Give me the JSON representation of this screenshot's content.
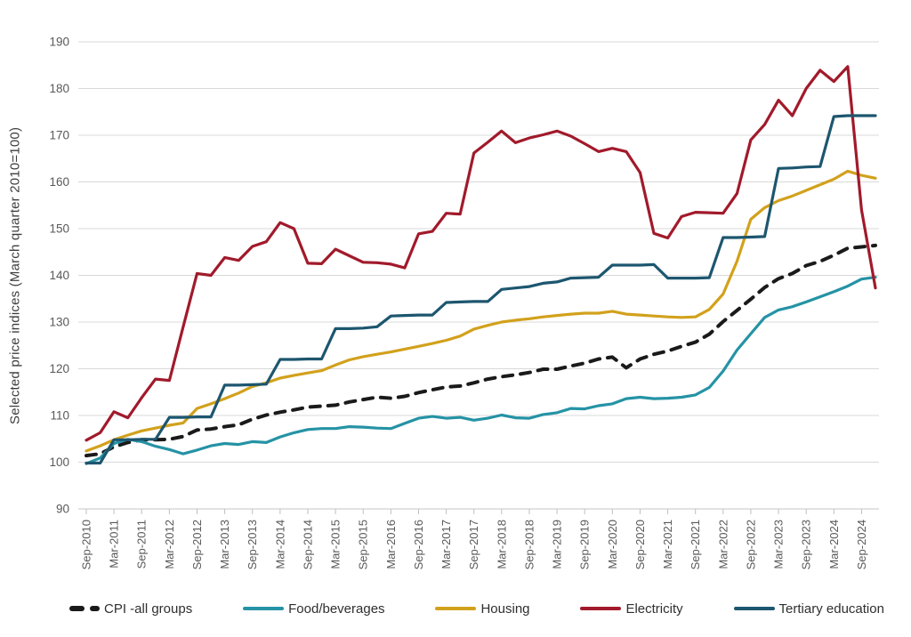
{
  "y_axis_title": "Selected price indices (March quarter 2010=100)",
  "colors": {
    "background": "#ffffff",
    "grid": "#d9d9d9",
    "axis_line": "#c6c6c6",
    "tick": "#bfbfbf",
    "axis_text": "#595959",
    "legend_text": "#2f2f2f"
  },
  "chart_data": {
    "type": "line",
    "title": "",
    "xlabel": "",
    "ylabel": "Selected price indices (March quarter 2010=100)",
    "ylim": [
      90,
      190
    ],
    "y_ticks": [
      90,
      100,
      110,
      120,
      130,
      140,
      150,
      160,
      170,
      180,
      190
    ],
    "grid": "horizontal",
    "legend_position": "bottom",
    "x": [
      "Sep-2010",
      "Dec-2010",
      "Mar-2011",
      "Jun-2011",
      "Sep-2011",
      "Dec-2011",
      "Mar-2012",
      "Jun-2012",
      "Sep-2012",
      "Dec-2012",
      "Mar-2013",
      "Jun-2013",
      "Sep-2013",
      "Dec-2013",
      "Mar-2014",
      "Jun-2014",
      "Sep-2014",
      "Dec-2014",
      "Mar-2015",
      "Jun-2015",
      "Sep-2015",
      "Dec-2015",
      "Mar-2016",
      "Jun-2016",
      "Sep-2016",
      "Dec-2016",
      "Mar-2017",
      "Jun-2017",
      "Sep-2017",
      "Dec-2017",
      "Mar-2018",
      "Jun-2018",
      "Sep-2018",
      "Dec-2018",
      "Mar-2019",
      "Jun-2019",
      "Sep-2019",
      "Dec-2019",
      "Mar-2020",
      "Jun-2020",
      "Sep-2020",
      "Dec-2020",
      "Mar-2021",
      "Jun-2021",
      "Sep-2021",
      "Dec-2021",
      "Mar-2022",
      "Jun-2022",
      "Sep-2022",
      "Dec-2022",
      "Mar-2023",
      "Jun-2023",
      "Sep-2023",
      "Dec-2023",
      "Mar-2024",
      "Jun-2024",
      "Sep-2024",
      "Dec-2024"
    ],
    "x_tick_labels": [
      "Sep-2010",
      "Mar-2011",
      "Sep-2011",
      "Mar-2012",
      "Sep-2012",
      "Mar-2013",
      "Sep-2013",
      "Mar-2014",
      "Sep-2014",
      "Mar-2015",
      "Sep-2015",
      "Mar-2016",
      "Sep-2016",
      "Mar-2017",
      "Sep-2017",
      "Mar-2018",
      "Sep-2018",
      "Mar-2019",
      "Sep-2019",
      "Mar-2020",
      "Sep-2020",
      "Mar-2021",
      "Sep-2021",
      "Mar-2022",
      "Sep-2022",
      "Mar-2023",
      "Sep-2023",
      "Mar-2024",
      "Sep-2024"
    ],
    "series": [
      {
        "name": "CPI -all groups",
        "color": "#1a1a1a",
        "dashed": true,
        "values": [
          101.4,
          101.8,
          103.3,
          104.2,
          104.8,
          104.8,
          104.9,
          105.5,
          106.9,
          107.1,
          107.6,
          108.0,
          109.2,
          110.1,
          110.7,
          111.2,
          111.8,
          112.0,
          112.2,
          112.9,
          113.4,
          113.9,
          113.7,
          114.1,
          114.9,
          115.5,
          116.1,
          116.3,
          117.0,
          117.8,
          118.3,
          118.7,
          119.2,
          119.9,
          119.9,
          120.6,
          121.2,
          122.1,
          122.5,
          120.2,
          122.1,
          123.1,
          123.8,
          124.8,
          125.7,
          127.4,
          130.1,
          132.5,
          134.9,
          137.4,
          139.3,
          140.4,
          142.1,
          143.0,
          144.3,
          145.8,
          146.1,
          146.4
        ]
      },
      {
        "name": "Food/beverages",
        "color": "#2593a5",
        "dashed": false,
        "values": [
          99.7,
          100.9,
          104.0,
          104.9,
          104.4,
          103.4,
          102.7,
          101.8,
          102.6,
          103.5,
          104.0,
          103.8,
          104.4,
          104.2,
          105.4,
          106.3,
          107.0,
          107.2,
          107.2,
          107.6,
          107.5,
          107.3,
          107.2,
          108.3,
          109.4,
          109.8,
          109.4,
          109.6,
          109.0,
          109.4,
          110.1,
          109.5,
          109.4,
          110.2,
          110.6,
          111.5,
          111.4,
          112.1,
          112.5,
          113.6,
          113.9,
          113.6,
          113.7,
          113.9,
          114.4,
          116.0,
          119.5,
          124.0,
          127.5,
          131.0,
          132.6,
          133.3,
          134.3,
          135.4,
          136.5,
          137.7,
          139.2,
          139.6
        ]
      },
      {
        "name": "Housing",
        "color": "#d2a11c",
        "dashed": false,
        "values": [
          102.4,
          103.5,
          104.8,
          105.8,
          106.7,
          107.3,
          107.9,
          108.4,
          111.5,
          112.5,
          113.6,
          114.8,
          116.2,
          117.0,
          118.0,
          118.6,
          119.1,
          119.6,
          120.8,
          121.9,
          122.6,
          123.1,
          123.6,
          124.2,
          124.8,
          125.4,
          126.1,
          127.0,
          128.5,
          129.3,
          130.0,
          130.4,
          130.7,
          131.1,
          131.4,
          131.7,
          131.9,
          131.9,
          132.3,
          131.7,
          131.5,
          131.3,
          131.1,
          131.0,
          131.1,
          132.7,
          136.0,
          143.0,
          152.0,
          154.5,
          156.0,
          157.0,
          158.2,
          159.4,
          160.6,
          162.3,
          161.4,
          160.8
        ]
      },
      {
        "name": "Electricity",
        "color": "#a11a2b",
        "dashed": false,
        "values": [
          104.7,
          106.3,
          110.8,
          109.5,
          113.8,
          117.8,
          117.5,
          129.0,
          140.4,
          140.0,
          143.8,
          143.2,
          146.2,
          147.2,
          151.3,
          150.0,
          142.6,
          142.5,
          145.6,
          144.2,
          142.8,
          142.7,
          142.4,
          141.6,
          148.9,
          149.4,
          153.3,
          153.1,
          166.2,
          168.5,
          170.9,
          168.4,
          169.4,
          170.1,
          170.9,
          169.8,
          168.2,
          166.5,
          167.2,
          166.5,
          162.0,
          149.0,
          148.0,
          152.6,
          153.5,
          153.4,
          153.3,
          157.5,
          169.0,
          172.3,
          177.5,
          174.2,
          180.0,
          183.9,
          181.5,
          184.7,
          154.0,
          137.3
        ]
      },
      {
        "name": "Tertiary education",
        "color": "#1d566f",
        "dashed": false,
        "values": [
          99.8,
          99.8,
          104.8,
          104.8,
          104.9,
          104.9,
          109.6,
          109.6,
          109.7,
          109.7,
          116.5,
          116.5,
          116.6,
          116.7,
          122.0,
          122.0,
          122.1,
          122.1,
          128.6,
          128.6,
          128.7,
          129.0,
          131.3,
          131.4,
          131.5,
          131.5,
          134.2,
          134.3,
          134.4,
          134.4,
          137.0,
          137.3,
          137.6,
          138.3,
          138.6,
          139.4,
          139.5,
          139.6,
          142.2,
          142.2,
          142.2,
          142.3,
          139.4,
          139.4,
          139.4,
          139.5,
          148.1,
          148.1,
          148.2,
          148.3,
          162.9,
          163.0,
          163.2,
          163.3,
          174.0,
          174.2,
          174.2,
          174.2
        ]
      }
    ]
  }
}
